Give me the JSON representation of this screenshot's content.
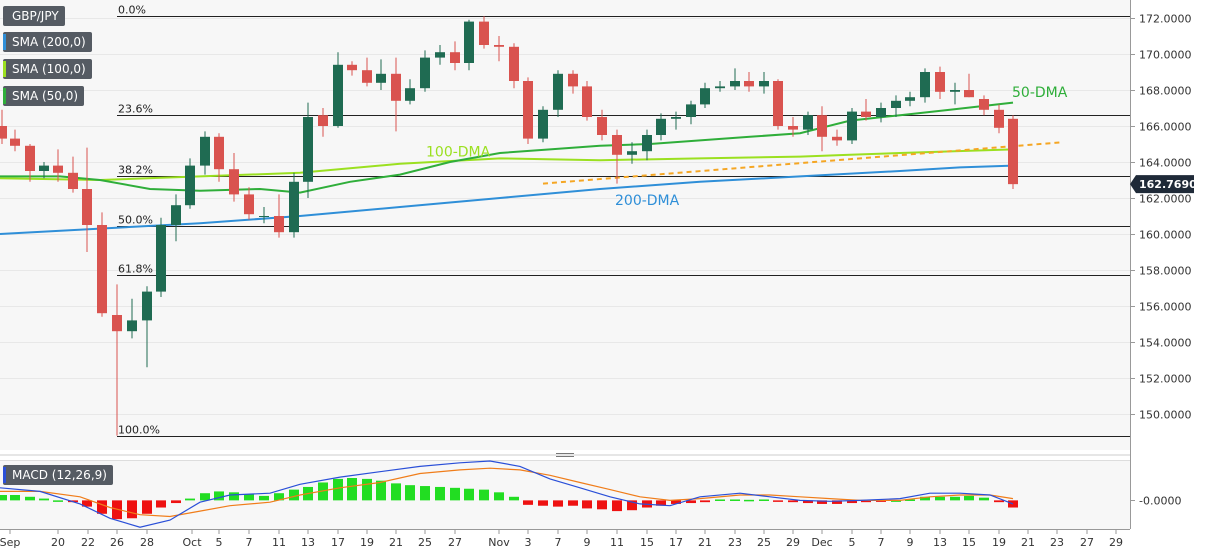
{
  "symbol": "GBP/JPY",
  "indicators": [
    {
      "label": "SMA (200,0)",
      "color": "#2f8fd8"
    },
    {
      "label": "SMA (100,0)",
      "color": "#9be020"
    },
    {
      "label": "SMA (50,0)",
      "color": "#2fae3a"
    }
  ],
  "macd": {
    "label": "MACD (12,26,9)",
    "zero_label": "-0.0000"
  },
  "colors": {
    "up": "#1f6b52",
    "down": "#d9534f",
    "ma200": "#2f8fd8",
    "ma100": "#9be020",
    "ma50": "#2fae3a",
    "trendline": "#f5a623",
    "macd_line": "#2a4fd8",
    "signal_line": "#f07d1a",
    "hist_pos": "#22dd22",
    "hist_neg": "#ee1111"
  },
  "chart_data": {
    "type": "candlestick",
    "instrument": "GBP/JPY",
    "y_axis": {
      "min": 148.0,
      "max": 173.0,
      "ticks": [
        "150.0000",
        "152.0000",
        "154.0000",
        "156.0000",
        "158.0000",
        "160.0000",
        "162.0000",
        "164.0000",
        "166.0000",
        "168.0000",
        "170.0000",
        "172.0000"
      ]
    },
    "last_price": "162.7690",
    "x_ticks": [
      "Sep",
      "20",
      "22",
      "26",
      "28",
      "Oct",
      "5",
      "7",
      "11",
      "13",
      "17",
      "19",
      "21",
      "25",
      "27",
      "Nov",
      "3",
      "7",
      "9",
      "11",
      "15",
      "17",
      "21",
      "23",
      "25",
      "29",
      "Dec",
      "5",
      "7",
      "9",
      "13",
      "15",
      "19",
      "21",
      "23",
      "27",
      "29"
    ],
    "fibonacci": [
      {
        "label": "0.0%",
        "price": 172.1
      },
      {
        "label": "23.6%",
        "price": 166.6
      },
      {
        "label": "38.2%",
        "price": 163.2
      },
      {
        "label": "50.0%",
        "price": 160.45
      },
      {
        "label": "61.8%",
        "price": 157.7
      },
      {
        "label": "100.0%",
        "price": 148.8
      }
    ],
    "annotations": [
      {
        "text": "50-DMA",
        "x": 1012,
        "y": 167.6,
        "color": "#2fae3a"
      },
      {
        "text": "100-DMA",
        "x": 426,
        "y": 164.3,
        "color": "#9be020"
      },
      {
        "text": "200-DMA",
        "x": 615,
        "y": 161.6,
        "color": "#2f8fd8"
      }
    ],
    "candles": [
      {
        "x": 2,
        "o": 166.0,
        "h": 166.9,
        "l": 165.0,
        "c": 165.3
      },
      {
        "x": 15,
        "o": 165.3,
        "h": 165.8,
        "l": 164.6,
        "c": 164.9
      },
      {
        "x": 30,
        "o": 164.9,
        "h": 165.0,
        "l": 162.9,
        "c": 163.5
      },
      {
        "x": 44,
        "o": 163.5,
        "h": 164.0,
        "l": 163.1,
        "c": 163.8
      },
      {
        "x": 58,
        "o": 163.8,
        "h": 164.7,
        "l": 162.9,
        "c": 163.4
      },
      {
        "x": 73,
        "o": 163.4,
        "h": 164.3,
        "l": 162.3,
        "c": 162.5
      },
      {
        "x": 87,
        "o": 162.5,
        "h": 164.8,
        "l": 159.0,
        "c": 160.5
      },
      {
        "x": 102,
        "o": 160.5,
        "h": 161.2,
        "l": 155.4,
        "c": 155.6
      },
      {
        "x": 117,
        "o": 155.5,
        "h": 157.2,
        "l": 148.8,
        "c": 154.6
      },
      {
        "x": 132,
        "o": 154.6,
        "h": 156.4,
        "l": 154.2,
        "c": 155.2
      },
      {
        "x": 147,
        "o": 155.2,
        "h": 157.1,
        "l": 152.6,
        "c": 156.8
      },
      {
        "x": 161,
        "o": 156.8,
        "h": 160.9,
        "l": 156.5,
        "c": 160.5
      },
      {
        "x": 176,
        "o": 160.5,
        "h": 162.2,
        "l": 159.6,
        "c": 161.6
      },
      {
        "x": 190,
        "o": 161.6,
        "h": 164.2,
        "l": 161.4,
        "c": 163.8
      },
      {
        "x": 205,
        "o": 163.8,
        "h": 165.7,
        "l": 163.3,
        "c": 165.4
      },
      {
        "x": 219,
        "o": 165.4,
        "h": 165.6,
        "l": 162.9,
        "c": 163.6
      },
      {
        "x": 234,
        "o": 163.6,
        "h": 164.5,
        "l": 161.8,
        "c": 162.2
      },
      {
        "x": 249,
        "o": 162.2,
        "h": 162.6,
        "l": 160.8,
        "c": 161.1
      },
      {
        "x": 264,
        "o": 161.0,
        "h": 161.5,
        "l": 160.6,
        "c": 161.0
      },
      {
        "x": 279,
        "o": 161.0,
        "h": 162.2,
        "l": 159.8,
        "c": 160.1
      },
      {
        "x": 294,
        "o": 160.1,
        "h": 163.4,
        "l": 159.8,
        "c": 162.9
      },
      {
        "x": 308,
        "o": 162.9,
        "h": 167.3,
        "l": 162.0,
        "c": 166.5
      },
      {
        "x": 323,
        "o": 166.6,
        "h": 167.0,
        "l": 165.4,
        "c": 166.0
      },
      {
        "x": 338,
        "o": 166.0,
        "h": 170.1,
        "l": 165.9,
        "c": 169.4
      },
      {
        "x": 352,
        "o": 169.4,
        "h": 169.6,
        "l": 168.8,
        "c": 169.1
      },
      {
        "x": 367,
        "o": 169.1,
        "h": 169.8,
        "l": 168.2,
        "c": 168.4
      },
      {
        "x": 381,
        "o": 168.4,
        "h": 169.7,
        "l": 168.0,
        "c": 168.9
      },
      {
        "x": 396,
        "o": 168.9,
        "h": 169.8,
        "l": 165.7,
        "c": 167.4
      },
      {
        "x": 410,
        "o": 167.4,
        "h": 168.6,
        "l": 167.2,
        "c": 168.1
      },
      {
        "x": 425,
        "o": 168.1,
        "h": 170.2,
        "l": 167.9,
        "c": 169.8
      },
      {
        "x": 440,
        "o": 169.8,
        "h": 170.5,
        "l": 169.4,
        "c": 170.1
      },
      {
        "x": 455,
        "o": 170.1,
        "h": 170.7,
        "l": 169.1,
        "c": 169.5
      },
      {
        "x": 469,
        "o": 169.5,
        "h": 171.9,
        "l": 169.1,
        "c": 171.8
      },
      {
        "x": 484,
        "o": 171.8,
        "h": 172.1,
        "l": 170.3,
        "c": 170.5
      },
      {
        "x": 499,
        "o": 170.5,
        "h": 171.0,
        "l": 169.6,
        "c": 170.4
      },
      {
        "x": 514,
        "o": 170.4,
        "h": 170.6,
        "l": 168.1,
        "c": 168.5
      },
      {
        "x": 528,
        "o": 168.5,
        "h": 168.7,
        "l": 165.0,
        "c": 165.3
      },
      {
        "x": 543,
        "o": 165.3,
        "h": 167.1,
        "l": 165.1,
        "c": 166.9
      },
      {
        "x": 558,
        "o": 166.9,
        "h": 169.1,
        "l": 166.5,
        "c": 168.9
      },
      {
        "x": 573,
        "o": 168.9,
        "h": 169.1,
        "l": 167.8,
        "c": 168.2
      },
      {
        "x": 587,
        "o": 168.2,
        "h": 168.5,
        "l": 166.3,
        "c": 166.5
      },
      {
        "x": 602,
        "o": 166.5,
        "h": 166.9,
        "l": 165.2,
        "c": 165.5
      },
      {
        "x": 617,
        "o": 165.5,
        "h": 165.8,
        "l": 162.8,
        "c": 164.4
      },
      {
        "x": 632,
        "o": 164.4,
        "h": 165.1,
        "l": 163.9,
        "c": 164.6
      },
      {
        "x": 647,
        "o": 164.6,
        "h": 165.8,
        "l": 164.1,
        "c": 165.5
      },
      {
        "x": 661,
        "o": 165.5,
        "h": 166.7,
        "l": 165.2,
        "c": 166.4
      },
      {
        "x": 676,
        "o": 166.4,
        "h": 166.8,
        "l": 165.8,
        "c": 166.5
      },
      {
        "x": 691,
        "o": 166.5,
        "h": 167.4,
        "l": 166.1,
        "c": 167.2
      },
      {
        "x": 705,
        "o": 167.2,
        "h": 168.4,
        "l": 167.0,
        "c": 168.1
      },
      {
        "x": 720,
        "o": 168.1,
        "h": 168.5,
        "l": 167.9,
        "c": 168.2
      },
      {
        "x": 735,
        "o": 168.2,
        "h": 169.2,
        "l": 168.0,
        "c": 168.5
      },
      {
        "x": 749,
        "o": 168.5,
        "h": 169.0,
        "l": 167.9,
        "c": 168.2
      },
      {
        "x": 764,
        "o": 168.2,
        "h": 169.0,
        "l": 167.8,
        "c": 168.5
      },
      {
        "x": 778,
        "o": 168.5,
        "h": 168.6,
        "l": 165.8,
        "c": 166.0
      },
      {
        "x": 793,
        "o": 166.0,
        "h": 166.5,
        "l": 165.4,
        "c": 165.8
      },
      {
        "x": 808,
        "o": 165.8,
        "h": 166.8,
        "l": 165.5,
        "c": 166.6
      },
      {
        "x": 822,
        "o": 166.6,
        "h": 167.1,
        "l": 164.6,
        "c": 165.4
      },
      {
        "x": 837,
        "o": 165.4,
        "h": 165.8,
        "l": 164.9,
        "c": 165.2
      },
      {
        "x": 852,
        "o": 165.2,
        "h": 167.0,
        "l": 165.0,
        "c": 166.8
      },
      {
        "x": 866,
        "o": 166.8,
        "h": 167.5,
        "l": 166.3,
        "c": 166.5
      },
      {
        "x": 881,
        "o": 166.5,
        "h": 167.3,
        "l": 166.2,
        "c": 167.0
      },
      {
        "x": 896,
        "o": 167.0,
        "h": 167.7,
        "l": 166.5,
        "c": 167.4
      },
      {
        "x": 910,
        "o": 167.4,
        "h": 167.9,
        "l": 167.1,
        "c": 167.6
      },
      {
        "x": 925,
        "o": 167.6,
        "h": 169.2,
        "l": 167.3,
        "c": 169.0
      },
      {
        "x": 940,
        "o": 169.0,
        "h": 169.3,
        "l": 167.5,
        "c": 167.9
      },
      {
        "x": 955,
        "o": 167.9,
        "h": 168.4,
        "l": 167.2,
        "c": 168.0
      },
      {
        "x": 969,
        "o": 168.0,
        "h": 168.9,
        "l": 167.6,
        "c": 167.6
      },
      {
        "x": 984,
        "o": 167.5,
        "h": 167.7,
        "l": 166.6,
        "c": 166.9
      },
      {
        "x": 999,
        "o": 166.9,
        "h": 167.2,
        "l": 165.6,
        "c": 165.9
      },
      {
        "x": 1013,
        "o": 166.4,
        "h": 166.6,
        "l": 162.5,
        "c": 162.77
      }
    ],
    "ma200": [
      [
        0,
        160.0
      ],
      [
        100,
        160.3
      ],
      [
        200,
        160.6
      ],
      [
        300,
        161.0
      ],
      [
        400,
        161.5
      ],
      [
        500,
        162.0
      ],
      [
        600,
        162.5
      ],
      [
        700,
        162.9
      ],
      [
        800,
        163.2
      ],
      [
        900,
        163.5
      ],
      [
        960,
        163.7
      ],
      [
        1013,
        163.8
      ]
    ],
    "ma100": [
      [
        0,
        163.1
      ],
      [
        100,
        163.0
      ],
      [
        200,
        163.2
      ],
      [
        300,
        163.4
      ],
      [
        400,
        163.9
      ],
      [
        500,
        164.2
      ],
      [
        600,
        164.1
      ],
      [
        700,
        164.2
      ],
      [
        800,
        164.3
      ],
      [
        850,
        164.4
      ],
      [
        900,
        164.5
      ],
      [
        1013,
        164.7
      ]
    ],
    "ma50": [
      [
        0,
        163.2
      ],
      [
        60,
        163.2
      ],
      [
        100,
        163.0
      ],
      [
        150,
        162.5
      ],
      [
        200,
        162.4
      ],
      [
        260,
        162.5
      ],
      [
        300,
        162.3
      ],
      [
        350,
        162.9
      ],
      [
        400,
        163.3
      ],
      [
        450,
        164.0
      ],
      [
        500,
        164.5
      ],
      [
        550,
        164.7
      ],
      [
        600,
        164.9
      ],
      [
        650,
        165.0
      ],
      [
        700,
        165.2
      ],
      [
        750,
        165.4
      ],
      [
        800,
        165.6
      ],
      [
        850,
        166.3
      ],
      [
        900,
        166.6
      ],
      [
        950,
        166.9
      ],
      [
        1013,
        167.3
      ]
    ],
    "trendline": [
      [
        543,
        162.8
      ],
      [
        1063,
        165.1
      ]
    ],
    "macd": {
      "ylim": [
        -1.6,
        2.2
      ],
      "hist_x": [
        2,
        15,
        30,
        44,
        58,
        73,
        87,
        102,
        117,
        132,
        147,
        161,
        176,
        190,
        205,
        219,
        234,
        249,
        264,
        279,
        294,
        308,
        323,
        338,
        352,
        367,
        381,
        396,
        410,
        425,
        440,
        455,
        469,
        484,
        499,
        514,
        528,
        543,
        558,
        573,
        587,
        602,
        617,
        632,
        647,
        661,
        676,
        691,
        705,
        720,
        735,
        749,
        764,
        778,
        793,
        808,
        822,
        837,
        852,
        866,
        881,
        896,
        910,
        925,
        940,
        955,
        969,
        984,
        999,
        1013
      ],
      "hist": [
        0.3,
        0.3,
        0.2,
        0.1,
        0.0,
        -0.1,
        -0.35,
        -0.75,
        -1.05,
        -1.0,
        -0.75,
        -0.4,
        -0.15,
        0.1,
        0.4,
        0.5,
        0.45,
        0.35,
        0.25,
        0.4,
        0.6,
        0.75,
        1.0,
        1.2,
        1.25,
        1.2,
        1.1,
        0.95,
        0.85,
        0.8,
        0.75,
        0.7,
        0.65,
        0.6,
        0.45,
        0.2,
        -0.25,
        -0.3,
        -0.35,
        -0.3,
        -0.45,
        -0.5,
        -0.6,
        -0.55,
        -0.4,
        -0.3,
        -0.2,
        -0.15,
        -0.1,
        0.05,
        0.05,
        0.03,
        0.05,
        -0.05,
        -0.1,
        -0.15,
        -0.2,
        -0.2,
        -0.15,
        -0.1,
        -0.05,
        0.0,
        0.05,
        0.2,
        0.2,
        0.2,
        0.25,
        0.15,
        -0.1,
        -0.4
      ],
      "macd_line": [
        [
          0,
          0.7
        ],
        [
          40,
          0.5
        ],
        [
          80,
          -0.2
        ],
        [
          110,
          -1.0
        ],
        [
          140,
          -1.5
        ],
        [
          170,
          -1.1
        ],
        [
          200,
          -0.1
        ],
        [
          230,
          0.3
        ],
        [
          270,
          0.4
        ],
        [
          300,
          0.9
        ],
        [
          340,
          1.3
        ],
        [
          380,
          1.6
        ],
        [
          420,
          1.9
        ],
        [
          460,
          2.1
        ],
        [
          490,
          2.2
        ],
        [
          520,
          1.9
        ],
        [
          550,
          1.2
        ],
        [
          580,
          0.7
        ],
        [
          610,
          0.2
        ],
        [
          640,
          -0.2
        ],
        [
          670,
          -0.3
        ],
        [
          700,
          0.2
        ],
        [
          740,
          0.4
        ],
        [
          770,
          0.2
        ],
        [
          800,
          0.0
        ],
        [
          830,
          -0.05
        ],
        [
          860,
          0.0
        ],
        [
          900,
          0.1
        ],
        [
          930,
          0.4
        ],
        [
          960,
          0.4
        ],
        [
          990,
          0.3
        ],
        [
          1013,
          -0.2
        ]
      ],
      "signal_line": [
        [
          0,
          0.5
        ],
        [
          40,
          0.5
        ],
        [
          80,
          0.2
        ],
        [
          110,
          -0.4
        ],
        [
          140,
          -0.8
        ],
        [
          170,
          -0.9
        ],
        [
          200,
          -0.6
        ],
        [
          230,
          -0.3
        ],
        [
          270,
          -0.1
        ],
        [
          300,
          0.3
        ],
        [
          340,
          0.7
        ],
        [
          380,
          1.0
        ],
        [
          420,
          1.5
        ],
        [
          460,
          1.7
        ],
        [
          490,
          1.8
        ],
        [
          520,
          1.7
        ],
        [
          550,
          1.4
        ],
        [
          580,
          1.0
        ],
        [
          610,
          0.6
        ],
        [
          640,
          0.2
        ],
        [
          670,
          0.0
        ],
        [
          700,
          0.1
        ],
        [
          740,
          0.3
        ],
        [
          770,
          0.3
        ],
        [
          800,
          0.2
        ],
        [
          830,
          0.1
        ],
        [
          860,
          0.0
        ],
        [
          900,
          0.0
        ],
        [
          930,
          0.2
        ],
        [
          960,
          0.3
        ],
        [
          990,
          0.3
        ],
        [
          1013,
          0.1
        ]
      ]
    }
  }
}
